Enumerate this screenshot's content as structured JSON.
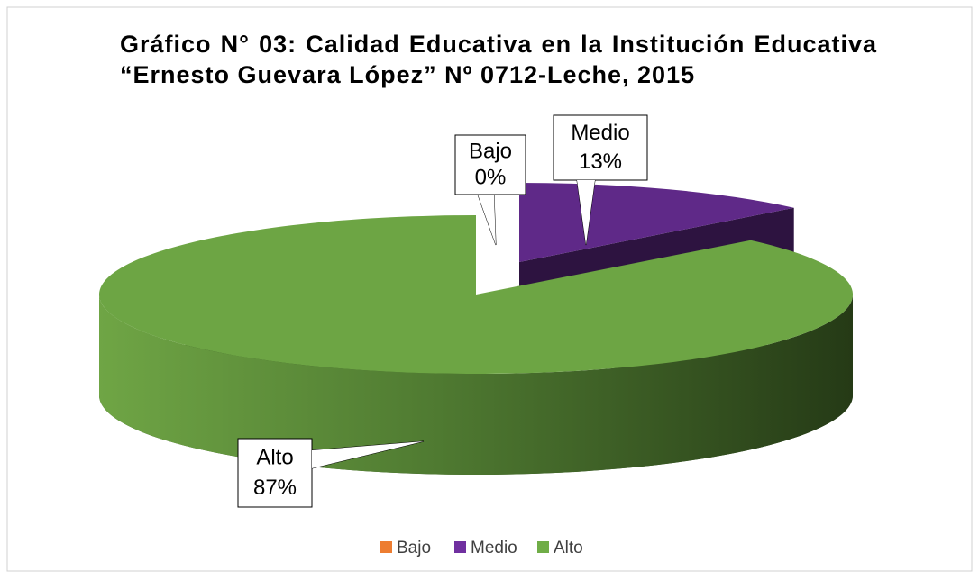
{
  "chart_data": {
    "type": "pie",
    "title": "Gráfico N° 03: Calidad Educativa en la Institución Educativa “Ernesto Guevara López” Nº 0712-Leche, 2015",
    "categories": [
      "Bajo",
      "Medio",
      "Alto"
    ],
    "values": [
      0,
      13,
      87
    ],
    "value_labels": [
      "0%",
      "13%",
      "87%"
    ],
    "colors": [
      "#ed7d31",
      "#7030a0",
      "#70ad47"
    ],
    "legend": "bottom"
  }
}
